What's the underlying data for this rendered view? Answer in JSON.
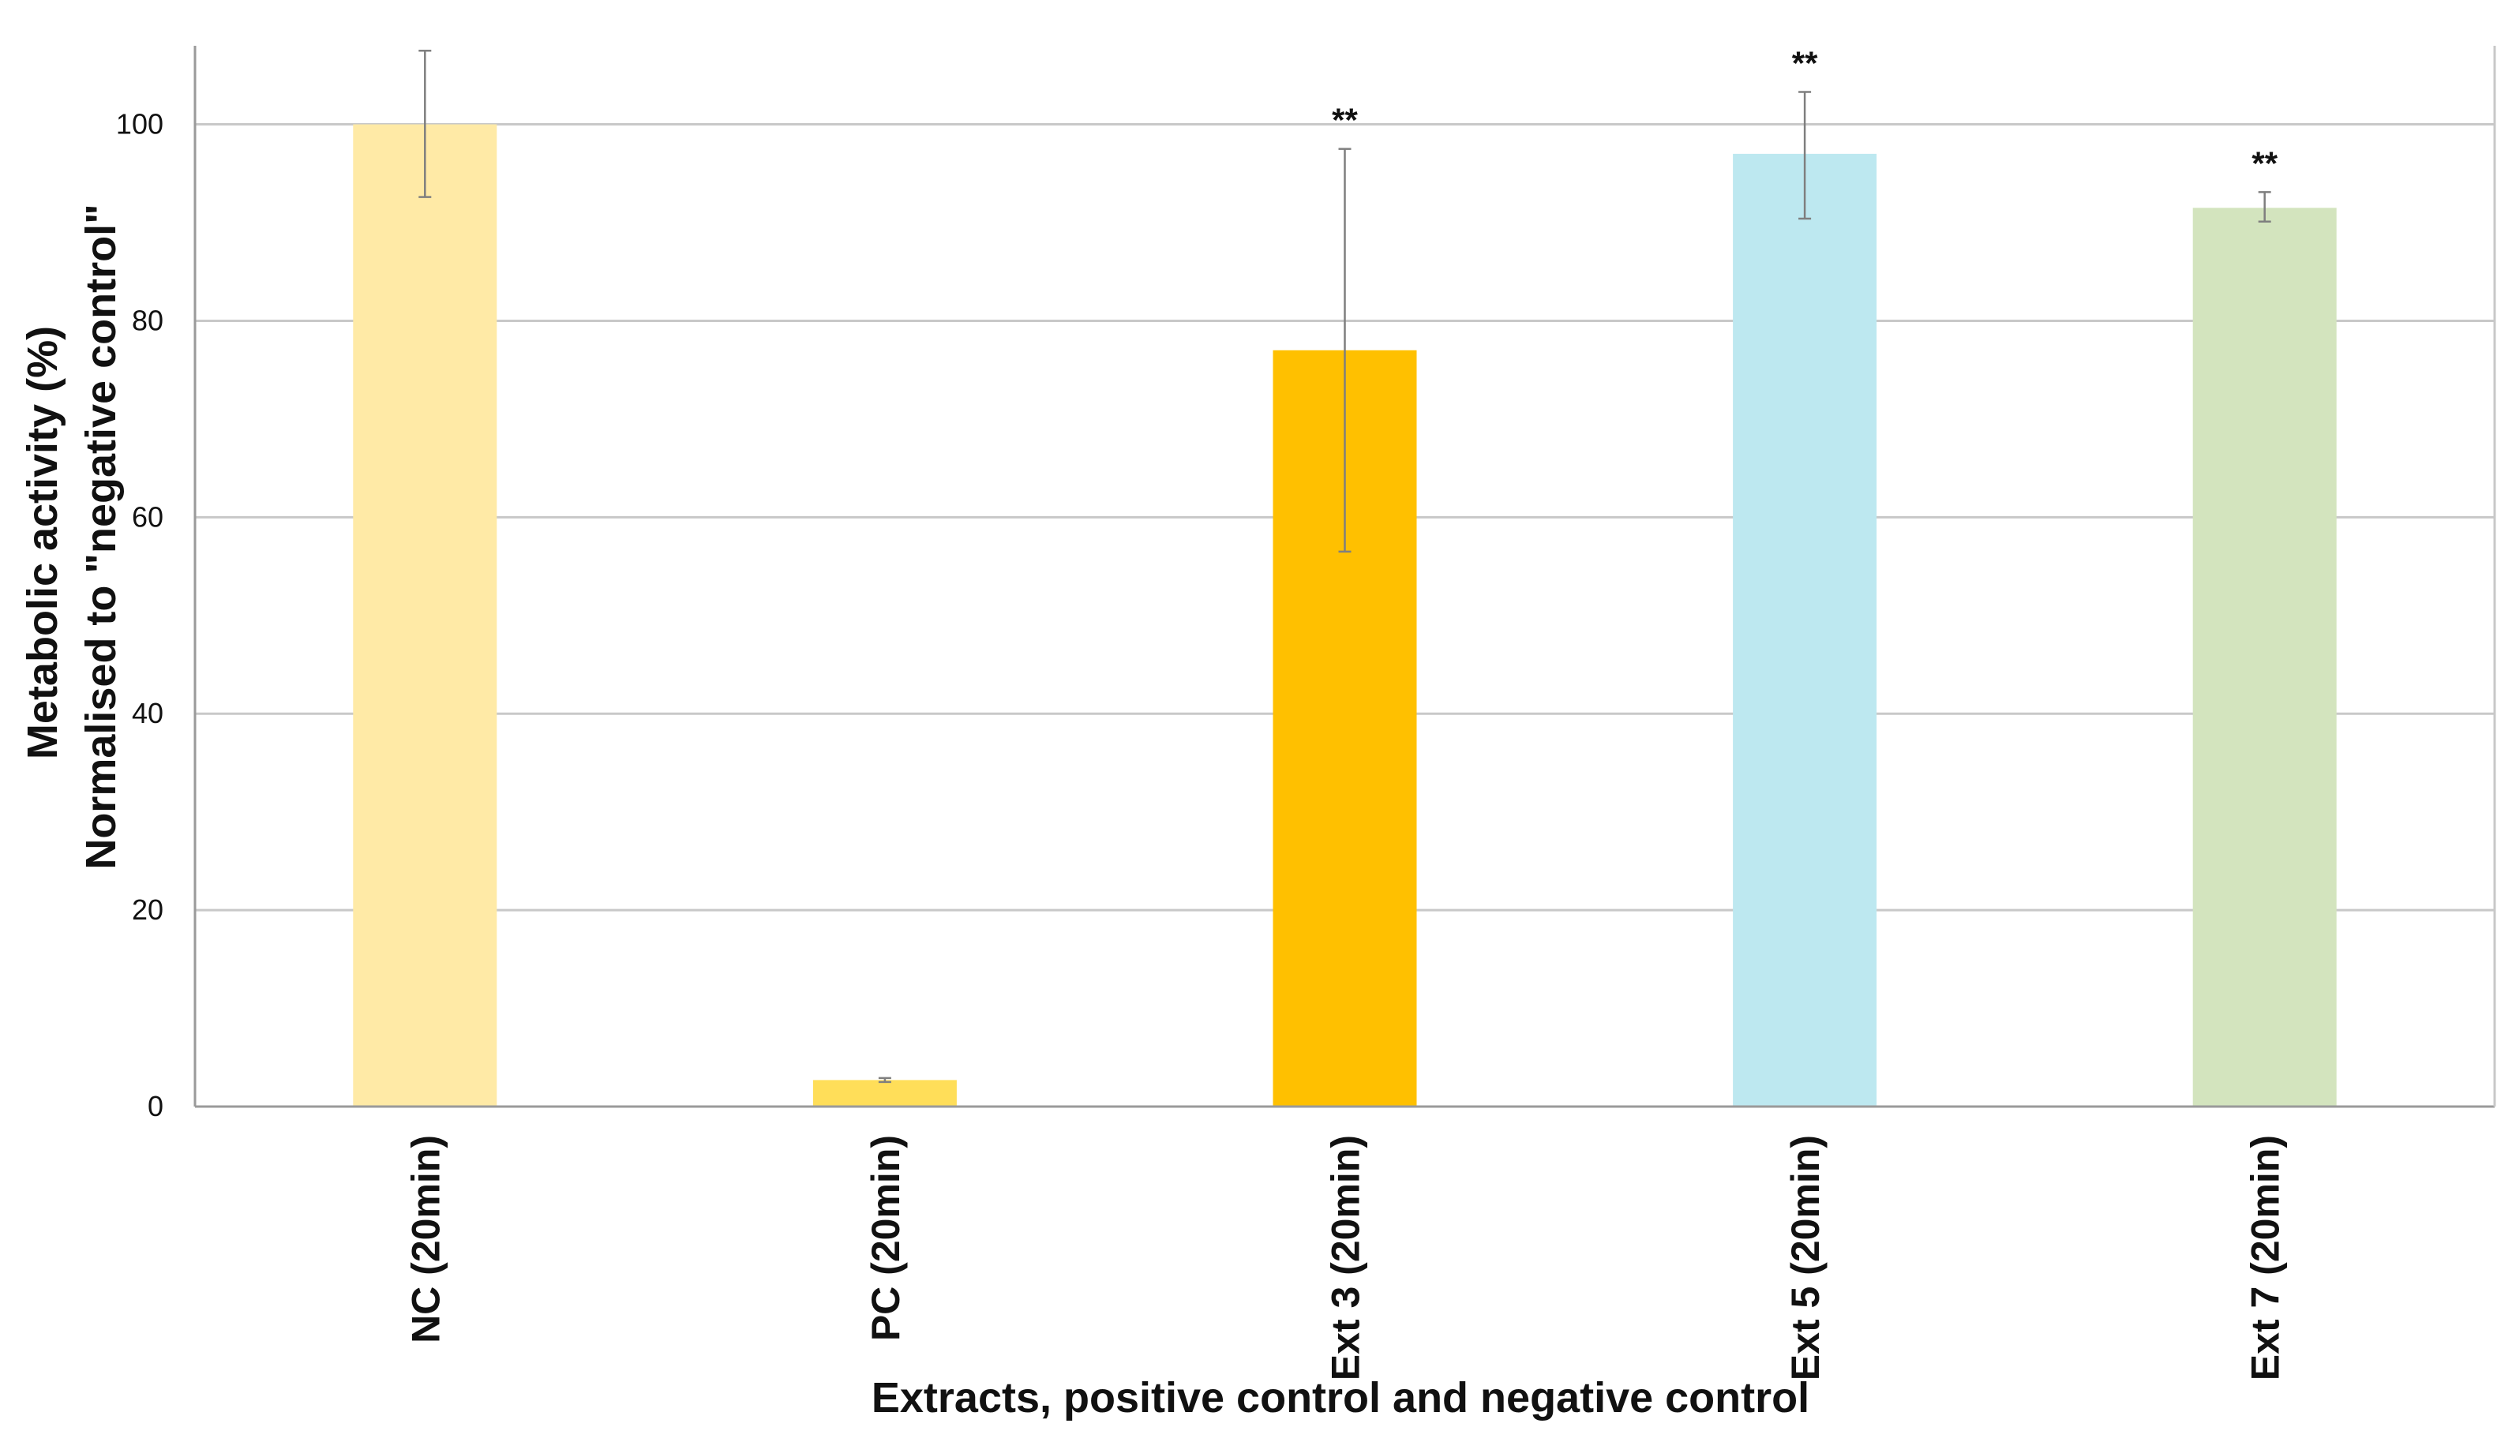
{
  "chart_data": {
    "type": "bar",
    "title": "",
    "xlabel": "Extracts, positive control and negative control",
    "ylabel_lines": [
      "Metabolic activity (%)",
      "Normalised to \"negative control\""
    ],
    "ylim": [
      0,
      108
    ],
    "yticks": [
      0,
      20,
      40,
      60,
      80,
      100
    ],
    "grid": true,
    "legend": "none",
    "categories": [
      "NC (20min)",
      "PC (20min)",
      "Ext 3 (20min)",
      "Ext 5 (20min)",
      "Ext 7 (20min)"
    ],
    "values": [
      100,
      2.7,
      77,
      97,
      91.5
    ],
    "error_low": [
      92.6,
      2.5,
      56.5,
      90.4,
      90.1
    ],
    "error_high": [
      107.5,
      2.9,
      97.5,
      103.3,
      93.1
    ],
    "significance": [
      "",
      "",
      "**",
      "**",
      "**"
    ],
    "colors": [
      "#FFEAA6",
      "#FFDE59",
      "#FFC000",
      "#BDE8F0",
      "#D3E4BE"
    ]
  }
}
